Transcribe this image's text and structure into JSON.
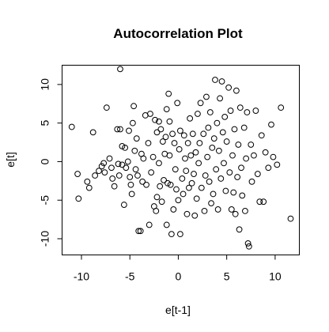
{
  "chart_data": {
    "type": "scatter",
    "title": "Autocorrelation Plot",
    "xlabel": "e[t-1]",
    "ylabel": "e[t]",
    "xlim": [
      -12,
      12.5
    ],
    "ylim": [
      -12.1,
      12.5
    ],
    "x_ticks": [
      -10,
      -5,
      0,
      5,
      10
    ],
    "y_ticks": [
      -10,
      -5,
      0,
      5,
      10
    ],
    "x_tick_labels": [
      "-10",
      "-5",
      "0",
      "5",
      "10"
    ],
    "y_tick_labels": [
      "-10",
      "-5",
      "0",
      "5",
      "10"
    ],
    "grid": false,
    "marker": "open-circle",
    "series": [
      {
        "values": [
          [
            -11,
            4.5
          ],
          [
            -10.4,
            -1.6
          ],
          [
            -10.3,
            -4.8
          ],
          [
            -9.4,
            -2.6
          ],
          [
            -9.2,
            -3.4
          ],
          [
            -8.8,
            3.8
          ],
          [
            -8.6,
            -1.8
          ],
          [
            -8.2,
            -1.2
          ],
          [
            -7.9,
            -0.6
          ],
          [
            -7.7,
            -0.2
          ],
          [
            -7.6,
            -1.4
          ],
          [
            -7.4,
            7.0
          ],
          [
            -7.1,
            0.4
          ],
          [
            -6.9,
            -0.8
          ],
          [
            -6.8,
            -2.2
          ],
          [
            -6.6,
            -3.2
          ],
          [
            -6.3,
            4.2
          ],
          [
            -6.2,
            -0.3
          ],
          [
            -6.1,
            -1.8
          ],
          [
            -6.0,
            4.2
          ],
          [
            -6.0,
            12.0
          ],
          [
            -5.8,
            2.0
          ],
          [
            -5.8,
            -0.4
          ],
          [
            -5.6,
            -5.6
          ],
          [
            -5.5,
            1.8
          ],
          [
            -5.4,
            -0.8
          ],
          [
            -5.2,
            0.0
          ],
          [
            -5.1,
            4.0
          ],
          [
            -5.0,
            -2.0
          ],
          [
            -4.9,
            -3.0
          ],
          [
            -4.8,
            -4.2
          ],
          [
            -4.7,
            5.0
          ],
          [
            -4.6,
            7.2
          ],
          [
            -4.5,
            1.4
          ],
          [
            -4.4,
            -1.0
          ],
          [
            -4.3,
            3.0
          ],
          [
            -4.2,
            -1.8
          ],
          [
            -4.1,
            -9.0
          ],
          [
            -3.9,
            -9.0
          ],
          [
            -3.8,
            1.0
          ],
          [
            -3.7,
            -2.6
          ],
          [
            -3.6,
            0.4
          ],
          [
            -3.4,
            6.0
          ],
          [
            -3.3,
            -3.0
          ],
          [
            -3.1,
            2.4
          ],
          [
            -3.0,
            -8.2
          ],
          [
            -2.9,
            6.2
          ],
          [
            -2.8,
            -1.4
          ],
          [
            -2.6,
            0.6
          ],
          [
            -2.5,
            -5.8
          ],
          [
            -2.4,
            5.4
          ],
          [
            -2.3,
            -6.4
          ],
          [
            -2.2,
            3.8
          ],
          [
            -2.2,
            -4.6
          ],
          [
            -2.0,
            -0.2
          ],
          [
            -2.0,
            5.2
          ],
          [
            -1.9,
            -3.2
          ],
          [
            -1.8,
            4.2
          ],
          [
            -1.7,
            -5.2
          ],
          [
            -1.6,
            2.6
          ],
          [
            -1.5,
            -2.4
          ],
          [
            -1.4,
            1.0
          ],
          [
            -1.3,
            3.2
          ],
          [
            -1.2,
            6.8
          ],
          [
            -1.2,
            -8.2
          ],
          [
            -1.1,
            -2.8
          ],
          [
            -1.0,
            8.8
          ],
          [
            -0.9,
            0.8
          ],
          [
            -0.9,
            5.2
          ],
          [
            -0.8,
            -3.0
          ],
          [
            -0.7,
            -9.4
          ],
          [
            -0.6,
            3.6
          ],
          [
            -0.5,
            -6.2
          ],
          [
            -0.4,
            2.4
          ],
          [
            -0.3,
            -1.0
          ],
          [
            -0.2,
            -3.6
          ],
          [
            -0.1,
            7.6
          ],
          [
            0.0,
            -5.0
          ],
          [
            0.1,
            1.6
          ],
          [
            0.2,
            4.0
          ],
          [
            0.2,
            -9.4
          ],
          [
            0.4,
            -2.2
          ],
          [
            0.5,
            -4.2
          ],
          [
            0.6,
            3.4
          ],
          [
            0.7,
            0.4
          ],
          [
            0.8,
            -1.2
          ],
          [
            0.9,
            -6.8
          ],
          [
            1.0,
            2.4
          ],
          [
            1.1,
            -3.4
          ],
          [
            1.2,
            5.6
          ],
          [
            1.3,
            0.8
          ],
          [
            1.4,
            -2.8
          ],
          [
            1.5,
            3.6
          ],
          [
            1.6,
            -1.6
          ],
          [
            1.7,
            -7.0
          ],
          [
            1.8,
            1.2
          ],
          [
            1.9,
            -4.8
          ],
          [
            2.0,
            6.2
          ],
          [
            2.1,
            -0.2
          ],
          [
            2.2,
            2.4
          ],
          [
            2.3,
            7.6
          ],
          [
            2.4,
            -3.4
          ],
          [
            2.6,
            3.6
          ],
          [
            2.7,
            -6.4
          ],
          [
            2.8,
            -1.8
          ],
          [
            2.9,
            8.4
          ],
          [
            3.0,
            0.6
          ],
          [
            3.1,
            4.4
          ],
          [
            3.2,
            -2.6
          ],
          [
            3.3,
            6.4
          ],
          [
            3.4,
            -5.4
          ],
          [
            3.5,
            1.8
          ],
          [
            3.6,
            -4.2
          ],
          [
            3.7,
            3.0
          ],
          [
            3.8,
            10.6
          ],
          [
            3.9,
            -1.0
          ],
          [
            4.0,
            5.0
          ],
          [
            4.1,
            -6.2
          ],
          [
            4.2,
            1.4
          ],
          [
            4.3,
            8.2
          ],
          [
            4.4,
            -2.2
          ],
          [
            4.5,
            10.4
          ],
          [
            4.6,
            3.8
          ],
          [
            4.7,
            -0.2
          ],
          [
            4.8,
            5.8
          ],
          [
            4.9,
            -3.8
          ],
          [
            5.0,
            2.6
          ],
          [
            5.2,
            9.6
          ],
          [
            5.3,
            -1.4
          ],
          [
            5.4,
            6.6
          ],
          [
            5.5,
            -6.2
          ],
          [
            5.6,
            0.8
          ],
          [
            5.7,
            -4.0
          ],
          [
            5.8,
            4.2
          ],
          [
            5.9,
            -6.8
          ],
          [
            6.0,
            9.2
          ],
          [
            6.1,
            -2.0
          ],
          [
            6.2,
            2.2
          ],
          [
            6.3,
            -8.8
          ],
          [
            6.4,
            7.0
          ],
          [
            6.5,
            -0.8
          ],
          [
            6.6,
            -4.4
          ],
          [
            6.8,
            4.4
          ],
          [
            6.9,
            -6.4
          ],
          [
            7.0,
            0.4
          ],
          [
            7.1,
            6.4
          ],
          [
            7.2,
            -10.6
          ],
          [
            7.3,
            -11.0
          ],
          [
            7.5,
            2.2
          ],
          [
            7.6,
            -2.6
          ],
          [
            7.8,
            0.8
          ],
          [
            8.0,
            6.6
          ],
          [
            8.2,
            -1.6
          ],
          [
            8.4,
            -5.2
          ],
          [
            8.6,
            3.4
          ],
          [
            8.8,
            -5.2
          ],
          [
            9.0,
            1.2
          ],
          [
            9.3,
            -0.8
          ],
          [
            9.6,
            4.8
          ],
          [
            9.8,
            0.6
          ],
          [
            10.2,
            -0.4
          ],
          [
            10.6,
            7.0
          ],
          [
            11.6,
            -7.4
          ]
        ]
      }
    ]
  }
}
